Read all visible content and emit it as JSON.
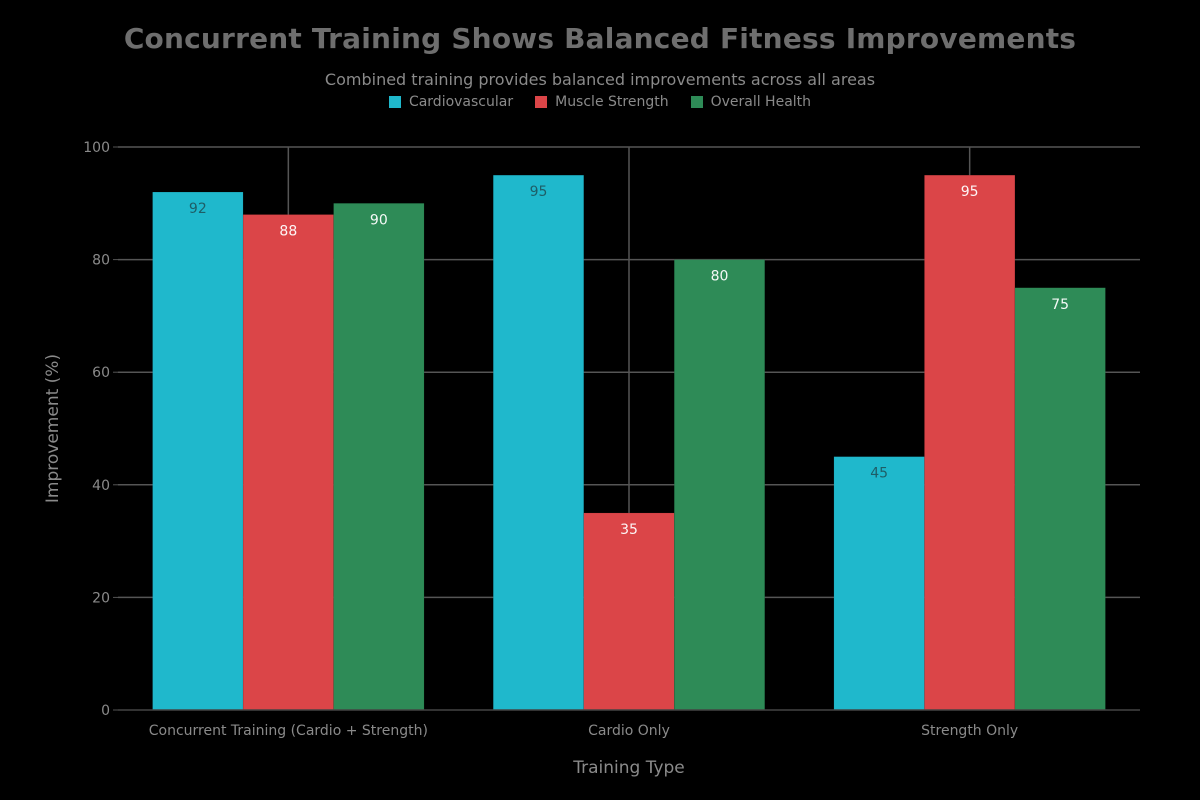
{
  "chart_data": {
    "type": "bar",
    "title": "Concurrent Training Shows Balanced Fitness Improvements",
    "subtitle": "Combined training provides balanced improvements across all areas",
    "xlabel": "Training Type",
    "ylabel": "Improvement (%)",
    "categories": [
      "Concurrent Training (Cardio + Strength)",
      "Cardio Only",
      "Strength Only"
    ],
    "series": [
      {
        "name": "Cardiovascular",
        "color": "#1fb8cc",
        "values": [
          92,
          95,
          45
        ]
      },
      {
        "name": "Muscle Strength",
        "color": "#db4548",
        "values": [
          88,
          35,
          95
        ]
      },
      {
        "name": "Overall Health",
        "color": "#2e8b57",
        "values": [
          90,
          80,
          75
        ]
      }
    ],
    "ylim": [
      0,
      100
    ],
    "yticks": [
      0,
      20,
      40,
      60,
      80,
      100
    ],
    "grid": true,
    "legend_position": "top-center",
    "background": "#000000",
    "gridline_color": "#555555",
    "text_color": "#8a8a8a"
  }
}
